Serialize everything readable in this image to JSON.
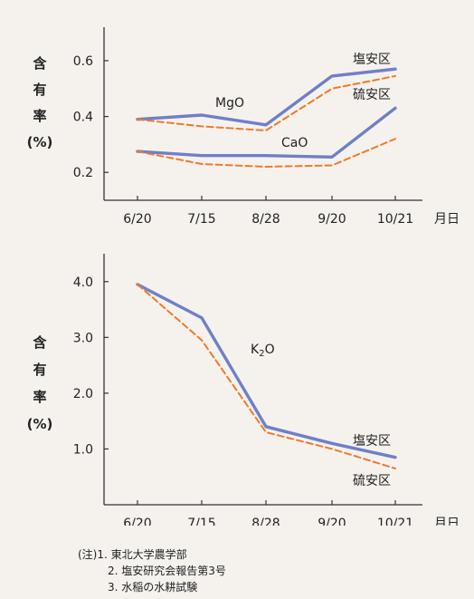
{
  "colors": {
    "solid_series": "#6f7fc8",
    "dashed_series": "#f07a2a",
    "axis": "#333333",
    "background": "#f5f2ee"
  },
  "chart_data": [
    {
      "type": "line",
      "ylabel": [
        "含",
        "有",
        "率",
        "(%)"
      ],
      "xlabel": "月日",
      "categories": [
        "6/20",
        "7/15",
        "8/28",
        "9/20",
        "10/21"
      ],
      "yticks": [
        "0.2",
        "0.4",
        "0.6"
      ],
      "ylim": [
        0.1,
        0.72
      ],
      "series": [
        {
          "name": "塩安区",
          "group": "MgO",
          "style": "solid",
          "values": [
            0.39,
            0.405,
            0.37,
            0.545,
            0.57
          ]
        },
        {
          "name": "硫安区",
          "group": "MgO",
          "style": "dashed",
          "values": [
            0.39,
            0.365,
            0.35,
            0.5,
            0.545
          ]
        },
        {
          "name": "塩安区",
          "group": "CaO",
          "style": "solid",
          "values": [
            0.275,
            0.26,
            0.26,
            0.255,
            0.43
          ]
        },
        {
          "name": "硫安区",
          "group": "CaO",
          "style": "dashed",
          "values": [
            0.275,
            0.23,
            0.22,
            0.225,
            0.32
          ]
        }
      ],
      "annotations": [
        "MgO",
        "CaO",
        "塩安区",
        "硫安区"
      ]
    },
    {
      "type": "line",
      "ylabel": [
        "含",
        "有",
        "率",
        "(%)"
      ],
      "xlabel": "月日",
      "categories": [
        "6/20",
        "7/15",
        "8/28",
        "9/20",
        "10/21"
      ],
      "yticks": [
        "1.0",
        "2.0",
        "3.0",
        "4.0"
      ],
      "ylim": [
        0.0,
        4.5
      ],
      "series": [
        {
          "name": "塩安区",
          "group": "K2O",
          "style": "solid",
          "values": [
            3.95,
            3.35,
            1.4,
            1.1,
            0.85
          ]
        },
        {
          "name": "硫安区",
          "group": "K2O",
          "style": "dashed",
          "values": [
            3.95,
            2.95,
            1.3,
            1.0,
            0.65
          ]
        }
      ],
      "annotations": [
        "K2O",
        "塩安区",
        "硫安区"
      ]
    }
  ],
  "notes": {
    "lines": [
      "(注)1. 東北大学農学部",
      "2. 塩安研究会報告第3号",
      "3. 水稲の水耕試験"
    ]
  }
}
